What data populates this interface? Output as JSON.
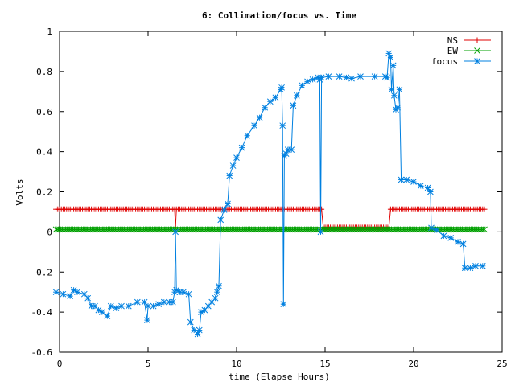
{
  "chart_data": {
    "type": "line",
    "title": "6: Collimation/focus vs. Time",
    "xlabel": "time (Elapse Hours)",
    "ylabel": "Volts",
    "xlim": [
      0,
      25
    ],
    "ylim": [
      -0.6,
      1
    ],
    "grid": false,
    "legend": "top-right",
    "x_ticks": [
      0,
      5,
      10,
      15,
      20,
      25
    ],
    "y_ticks": [
      -0.6,
      -0.4,
      -0.2,
      0,
      0.2,
      0.4,
      0.6,
      0.8,
      1
    ],
    "x_tick_labels": [
      "0",
      "5",
      "10",
      "15",
      "20",
      "25"
    ],
    "y_tick_labels": [
      "-0.6",
      "-0.4",
      "-0.2",
      "0",
      "0.2",
      "0.4",
      "0.6",
      "0.8",
      "1"
    ],
    "series": [
      {
        "name": "NS",
        "color": "#e00000",
        "marker": "plus",
        "points": [
          [
            -0.2,
            0.113
          ],
          [
            6.5,
            0.113
          ],
          [
            6.55,
            0.02
          ],
          [
            6.6,
            0.113
          ],
          [
            14.8,
            0.113
          ],
          [
            14.9,
            0.022
          ],
          [
            18.6,
            0.022
          ],
          [
            18.7,
            0.113
          ],
          [
            24.0,
            0.113
          ]
        ]
      },
      {
        "name": "EW",
        "color": "#00a000",
        "marker": "cross",
        "points": [
          [
            -0.2,
            0.012
          ],
          [
            24.0,
            0.012
          ]
        ]
      },
      {
        "name": "focus",
        "color": "#0080e0",
        "marker": "star",
        "points": [
          [
            -0.2,
            -0.3
          ],
          [
            0.2,
            -0.31
          ],
          [
            0.6,
            -0.32
          ],
          [
            0.8,
            -0.29
          ],
          [
            1.0,
            -0.3
          ],
          [
            1.4,
            -0.31
          ],
          [
            1.6,
            -0.33
          ],
          [
            1.8,
            -0.37
          ],
          [
            2.0,
            -0.37
          ],
          [
            2.2,
            -0.39
          ],
          [
            2.4,
            -0.4
          ],
          [
            2.7,
            -0.42
          ],
          [
            2.9,
            -0.37
          ],
          [
            3.2,
            -0.38
          ],
          [
            3.5,
            -0.37
          ],
          [
            3.9,
            -0.37
          ],
          [
            4.4,
            -0.35
          ],
          [
            4.8,
            -0.35
          ],
          [
            4.95,
            -0.44
          ],
          [
            5.0,
            -0.37
          ],
          [
            5.3,
            -0.37
          ],
          [
            5.6,
            -0.36
          ],
          [
            5.9,
            -0.35
          ],
          [
            6.2,
            -0.35
          ],
          [
            6.4,
            -0.35
          ],
          [
            6.5,
            -0.3
          ],
          [
            6.55,
            0.0
          ],
          [
            6.6,
            -0.29
          ],
          [
            6.8,
            -0.3
          ],
          [
            7.0,
            -0.3
          ],
          [
            7.3,
            -0.31
          ],
          [
            7.4,
            -0.45
          ],
          [
            7.6,
            -0.49
          ],
          [
            7.8,
            -0.51
          ],
          [
            7.9,
            -0.49
          ],
          [
            8.0,
            -0.4
          ],
          [
            8.2,
            -0.39
          ],
          [
            8.4,
            -0.37
          ],
          [
            8.6,
            -0.35
          ],
          [
            8.8,
            -0.33
          ],
          [
            8.9,
            -0.3
          ],
          [
            9.0,
            -0.27
          ],
          [
            9.1,
            0.06
          ],
          [
            9.3,
            0.11
          ],
          [
            9.5,
            0.14
          ],
          [
            9.6,
            0.28
          ],
          [
            9.8,
            0.33
          ],
          [
            10.0,
            0.37
          ],
          [
            10.3,
            0.42
          ],
          [
            10.6,
            0.48
          ],
          [
            11.0,
            0.53
          ],
          [
            11.3,
            0.57
          ],
          [
            11.6,
            0.62
          ],
          [
            11.9,
            0.65
          ],
          [
            12.2,
            0.67
          ],
          [
            12.5,
            0.71
          ],
          [
            12.55,
            0.72
          ],
          [
            12.6,
            0.53
          ],
          [
            12.65,
            -0.36
          ],
          [
            12.7,
            0.38
          ],
          [
            12.8,
            0.39
          ],
          [
            12.9,
            0.41
          ],
          [
            13.1,
            0.41
          ],
          [
            13.2,
            0.63
          ],
          [
            13.4,
            0.68
          ],
          [
            13.7,
            0.73
          ],
          [
            14.0,
            0.75
          ],
          [
            14.3,
            0.76
          ],
          [
            14.6,
            0.77
          ],
          [
            14.7,
            0.76
          ],
          [
            14.75,
            0.0
          ],
          [
            14.8,
            0.77
          ],
          [
            15.2,
            0.775
          ],
          [
            15.8,
            0.775
          ],
          [
            16.2,
            0.77
          ],
          [
            16.5,
            0.765
          ],
          [
            17.0,
            0.775
          ],
          [
            17.8,
            0.775
          ],
          [
            18.4,
            0.775
          ],
          [
            18.5,
            0.77
          ],
          [
            18.6,
            0.89
          ],
          [
            18.7,
            0.87
          ],
          [
            18.75,
            0.71
          ],
          [
            18.85,
            0.83
          ],
          [
            18.9,
            0.68
          ],
          [
            19.0,
            0.61
          ],
          [
            19.1,
            0.62
          ],
          [
            19.2,
            0.71
          ],
          [
            19.3,
            0.26
          ],
          [
            19.6,
            0.26
          ],
          [
            20.0,
            0.25
          ],
          [
            20.4,
            0.23
          ],
          [
            20.8,
            0.22
          ],
          [
            20.95,
            0.2
          ],
          [
            21.0,
            0.02
          ],
          [
            21.3,
            0.01
          ],
          [
            21.7,
            -0.02
          ],
          [
            22.1,
            -0.03
          ],
          [
            22.5,
            -0.05
          ],
          [
            22.8,
            -0.06
          ],
          [
            22.9,
            -0.18
          ],
          [
            23.2,
            -0.18
          ],
          [
            23.5,
            -0.17
          ],
          [
            23.9,
            -0.17
          ]
        ]
      }
    ]
  }
}
